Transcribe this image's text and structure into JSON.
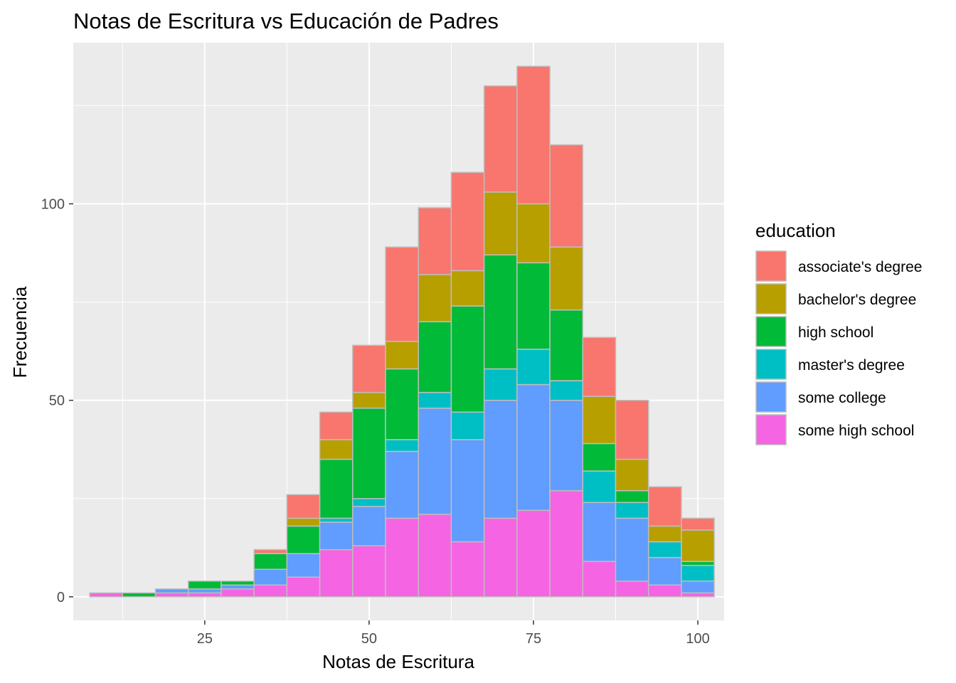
{
  "chart_data": {
    "type": "bar",
    "subtype": "stacked-histogram",
    "title": "Notas de Escritura vs Educación de Padres",
    "xlabel": "Notas de Escritura",
    "ylabel": "Frecuencia",
    "xlim": [
      5,
      104
    ],
    "ylim": [
      -6,
      141
    ],
    "x_ticks": [
      25,
      50,
      75,
      100
    ],
    "y_ticks": [
      0,
      50,
      100
    ],
    "grid": true,
    "legend_title": "education",
    "legend_position": "right",
    "bin_width": 5,
    "bin_centers": [
      10,
      15,
      20,
      25,
      30,
      35,
      40,
      45,
      50,
      55,
      60,
      65,
      70,
      75,
      80,
      85,
      90,
      95,
      100
    ],
    "series": [
      {
        "name": "some high school",
        "color": "#F564E3",
        "values": [
          1,
          0,
          1,
          1,
          2,
          3,
          5,
          12,
          13,
          20,
          21,
          14,
          20,
          22,
          27,
          9,
          4,
          3,
          1
        ]
      },
      {
        "name": "some college",
        "color": "#619CFF",
        "values": [
          0,
          0,
          1,
          1,
          1,
          4,
          6,
          7,
          10,
          17,
          27,
          26,
          30,
          32,
          23,
          15,
          16,
          7,
          3
        ]
      },
      {
        "name": "master's degree",
        "color": "#00BFC4",
        "values": [
          0,
          0,
          0,
          0,
          0,
          0,
          0,
          1,
          2,
          3,
          4,
          7,
          8,
          9,
          5,
          8,
          4,
          4,
          4
        ]
      },
      {
        "name": "high school",
        "color": "#00BA38",
        "values": [
          0,
          1,
          0,
          2,
          1,
          4,
          7,
          15,
          23,
          18,
          18,
          27,
          29,
          22,
          18,
          7,
          3,
          0,
          1
        ]
      },
      {
        "name": "bachelor's degree",
        "color": "#B79F00",
        "values": [
          0,
          0,
          0,
          0,
          0,
          0,
          2,
          5,
          4,
          7,
          12,
          9,
          16,
          15,
          16,
          12,
          8,
          4,
          8
        ]
      },
      {
        "name": "associate's degree",
        "color": "#F8766D",
        "values": [
          0,
          0,
          0,
          0,
          0,
          1,
          6,
          7,
          12,
          24,
          17,
          25,
          27,
          35,
          26,
          15,
          15,
          10,
          3
        ]
      }
    ],
    "legend_order": [
      "associate's degree",
      "bachelor's degree",
      "high school",
      "master's degree",
      "some college",
      "some high school"
    ]
  }
}
